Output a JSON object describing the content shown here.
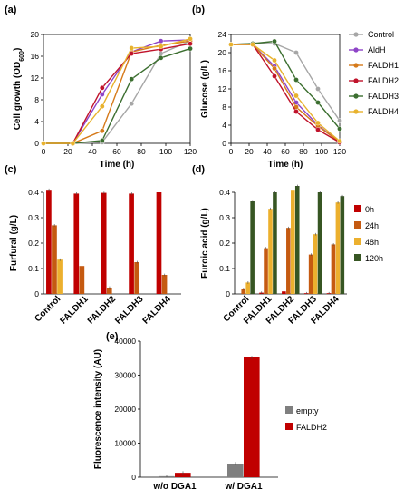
{
  "chart_data": [
    {
      "panel": "(a)",
      "type": "line",
      "xlabel": "Time (h)",
      "ylabel": "Cell growth (OD600)",
      "ylabel_main": "Cell growth (OD",
      "ylabel_sub": "600",
      "ylabel_end": ")",
      "xlim": [
        0,
        120
      ],
      "ylim": [
        0,
        20
      ],
      "xticks": [
        0,
        20,
        40,
        60,
        80,
        100,
        120
      ],
      "yticks": [
        0,
        4,
        8,
        12,
        16,
        20
      ],
      "x": [
        0,
        24,
        48,
        72,
        96,
        120
      ],
      "series": [
        {
          "name": "Control",
          "color": "#a6a6a6",
          "values": [
            0,
            0,
            0.2,
            7.3,
            16.5,
            18.8
          ]
        },
        {
          "name": "AldH",
          "color": "#8e44c7",
          "values": [
            0,
            0,
            9.0,
            16.8,
            18.8,
            19.0
          ]
        },
        {
          "name": "FALDH1",
          "color": "#d67a1a",
          "values": [
            0,
            0,
            2.3,
            16.8,
            18.0,
            18.8
          ]
        },
        {
          "name": "FALDH2",
          "color": "#c0132b",
          "values": [
            0,
            0,
            10.2,
            16.5,
            17.3,
            18.3
          ]
        },
        {
          "name": "FALDH3",
          "color": "#3b6e2f",
          "values": [
            0,
            0,
            0.5,
            11.8,
            15.7,
            17.4
          ]
        },
        {
          "name": "FALDH4",
          "color": "#e8b22d",
          "values": [
            0,
            0,
            6.8,
            17.5,
            17.8,
            19.2
          ]
        }
      ]
    },
    {
      "panel": "(b)",
      "type": "line",
      "xlabel": "Time (h)",
      "ylabel": "Glucose (g/L)",
      "xlim": [
        0,
        120
      ],
      "ylim": [
        0,
        24
      ],
      "xticks": [
        0,
        20,
        40,
        60,
        80,
        100,
        120
      ],
      "yticks": [
        0,
        4,
        8,
        12,
        16,
        20,
        24
      ],
      "x": [
        0,
        24,
        48,
        72,
        96,
        120
      ],
      "legend": [
        "Control",
        "AldH",
        "FALDH1",
        "FALDH2",
        "FALDH3",
        "FALDH4"
      ],
      "series": [
        {
          "name": "Control",
          "color": "#a6a6a6",
          "values": [
            21.8,
            22.0,
            22.0,
            20.0,
            12.0,
            5.0
          ]
        },
        {
          "name": "AldH",
          "color": "#8e44c7",
          "values": [
            21.8,
            21.8,
            17.0,
            9.0,
            4.0,
            0.3
          ]
        },
        {
          "name": "FALDH1",
          "color": "#d67a1a",
          "values": [
            21.8,
            21.8,
            16.5,
            8.0,
            3.8,
            0.3
          ]
        },
        {
          "name": "FALDH2",
          "color": "#c0132b",
          "values": [
            21.8,
            21.8,
            14.8,
            7.0,
            3.0,
            0.2
          ]
        },
        {
          "name": "FALDH3",
          "color": "#3b6e2f",
          "values": [
            21.8,
            22.0,
            22.5,
            14.0,
            9.0,
            3.2
          ]
        },
        {
          "name": "FALDH4",
          "color": "#e8b22d",
          "values": [
            21.8,
            21.8,
            18.3,
            10.5,
            4.5,
            0.5
          ]
        }
      ]
    },
    {
      "panel": "(c)",
      "type": "bar",
      "ylabel": "Furfural (g/L)",
      "ylim": [
        0,
        0.4
      ],
      "yticks": [
        0,
        0.1,
        0.2,
        0.3,
        0.4
      ],
      "categories": [
        "Control",
        "FALDH1",
        "FALDH2",
        "FALDH3",
        "FALDH4"
      ],
      "series": [
        {
          "name": "0h",
          "color": "#c00000",
          "values": [
            0.41,
            0.395,
            0.398,
            0.395,
            0.4
          ]
        },
        {
          "name": "24h",
          "color": "#c55a11",
          "values": [
            0.27,
            0.11,
            0.025,
            0.125,
            0.075
          ]
        },
        {
          "name": "48h",
          "color": "#ecb02e",
          "values": [
            0.135,
            0,
            0,
            0,
            0
          ]
        },
        {
          "name": "120h",
          "color": "#375623",
          "values": [
            0,
            0,
            0,
            0,
            0
          ]
        }
      ]
    },
    {
      "panel": "(d)",
      "type": "bar",
      "ylabel": "Furoic acid (g/L)",
      "ylim": [
        0,
        0.4
      ],
      "yticks": [
        0,
        0.1,
        0.2,
        0.3,
        0.4
      ],
      "categories": [
        "Control",
        "FALDH1",
        "FALDH2",
        "FALDH3",
        "FALDH4"
      ],
      "legend": [
        "0h",
        "24h",
        "48h",
        "120h"
      ],
      "series": [
        {
          "name": "0h",
          "color": "#c00000",
          "values": [
            0,
            0.005,
            0.01,
            0.003,
            0.003
          ]
        },
        {
          "name": "24h",
          "color": "#c55a11",
          "values": [
            0.02,
            0.18,
            0.26,
            0.155,
            0.195
          ]
        },
        {
          "name": "48h",
          "color": "#ecb02e",
          "values": [
            0.045,
            0.335,
            0.41,
            0.235,
            0.36
          ]
        },
        {
          "name": "120h",
          "color": "#375623",
          "values": [
            0.365,
            0.4,
            0.425,
            0.4,
            0.385
          ]
        }
      ]
    },
    {
      "panel": "(e)",
      "type": "bar",
      "ylabel": "Fluorescence intensity (AU)",
      "ylim": [
        0,
        40000
      ],
      "yticks": [
        0,
        10000,
        20000,
        30000,
        40000
      ],
      "categories": [
        "w/o DGA1",
        "w/ DGA1"
      ],
      "legend": [
        "empty",
        "FALDH2"
      ],
      "series": [
        {
          "name": "empty",
          "color": "#7f7f7f",
          "values": [
            300,
            4000
          ]
        },
        {
          "name": "FALDH2",
          "color": "#c00000",
          "values": [
            1300,
            35200
          ]
        }
      ]
    }
  ]
}
